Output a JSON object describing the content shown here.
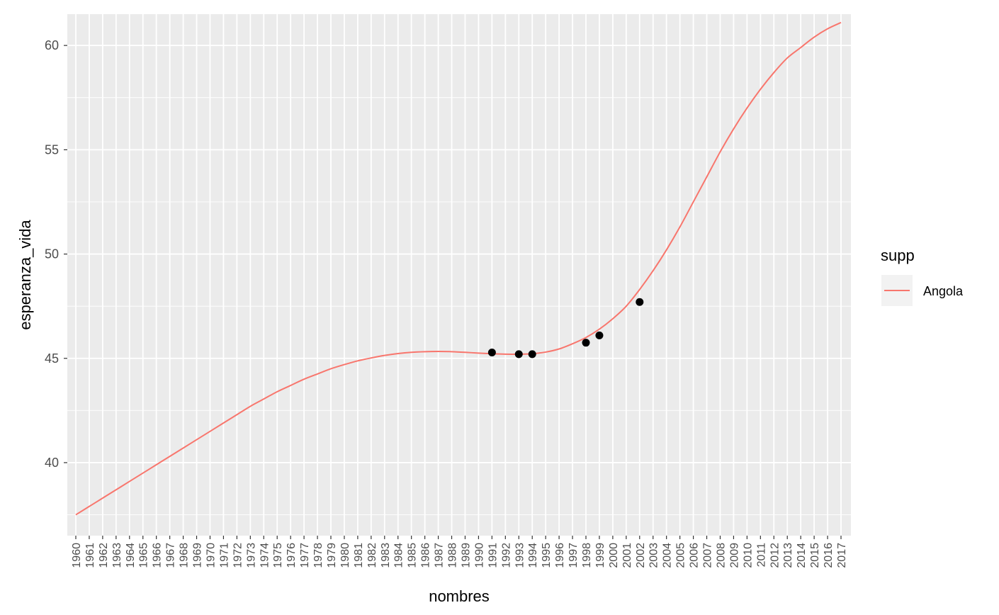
{
  "chart_data": {
    "type": "line",
    "title": "",
    "xlabel": "nombres",
    "ylabel": "esperanza_vida",
    "categories": [
      "1960",
      "1961",
      "1962",
      "1963",
      "1964",
      "1965",
      "1966",
      "1967",
      "1968",
      "1969",
      "1970",
      "1971",
      "1972",
      "1973",
      "1974",
      "1975",
      "1976",
      "1977",
      "1978",
      "1979",
      "1980",
      "1981",
      "1982",
      "1983",
      "1984",
      "1985",
      "1986",
      "1987",
      "1988",
      "1989",
      "1990",
      "1991",
      "1992",
      "1993",
      "1994",
      "1995",
      "1996",
      "1997",
      "1998",
      "1999",
      "2000",
      "2001",
      "2002",
      "2003",
      "2004",
      "2005",
      "2006",
      "2007",
      "2008",
      "2009",
      "2010",
      "2011",
      "2012",
      "2013",
      "2014",
      "2015",
      "2016",
      "2017"
    ],
    "ylim": [
      36.5,
      61.5
    ],
    "yticks": [
      40,
      45,
      50,
      55,
      60
    ],
    "grid": true,
    "legend": {
      "title": "supp",
      "position": "right"
    },
    "series": [
      {
        "name": "Angola",
        "color": "#f8766d",
        "type": "line",
        "values": [
          37.5,
          37.9,
          38.3,
          38.7,
          39.1,
          39.5,
          39.9,
          40.3,
          40.7,
          41.1,
          41.5,
          41.9,
          42.3,
          42.7,
          43.05,
          43.4,
          43.7,
          44.0,
          44.25,
          44.5,
          44.7,
          44.88,
          45.02,
          45.14,
          45.23,
          45.29,
          45.32,
          45.33,
          45.32,
          45.29,
          45.25,
          45.22,
          45.2,
          45.2,
          45.22,
          45.3,
          45.45,
          45.7,
          46.0,
          46.4,
          46.9,
          47.5,
          48.3,
          49.2,
          50.2,
          51.3,
          52.5,
          53.7,
          54.9,
          56.0,
          57.0,
          57.9,
          58.7,
          59.4,
          59.9,
          60.4,
          60.8,
          61.1
        ]
      },
      {
        "name": "points",
        "color": "#000000",
        "type": "scatter",
        "points": [
          {
            "x": "1991",
            "y": 45.28
          },
          {
            "x": "1993",
            "y": 45.2
          },
          {
            "x": "1994",
            "y": 45.2
          },
          {
            "x": "1998",
            "y": 45.75
          },
          {
            "x": "1999",
            "y": 46.1
          },
          {
            "x": "2002",
            "y": 47.7
          }
        ]
      }
    ]
  }
}
